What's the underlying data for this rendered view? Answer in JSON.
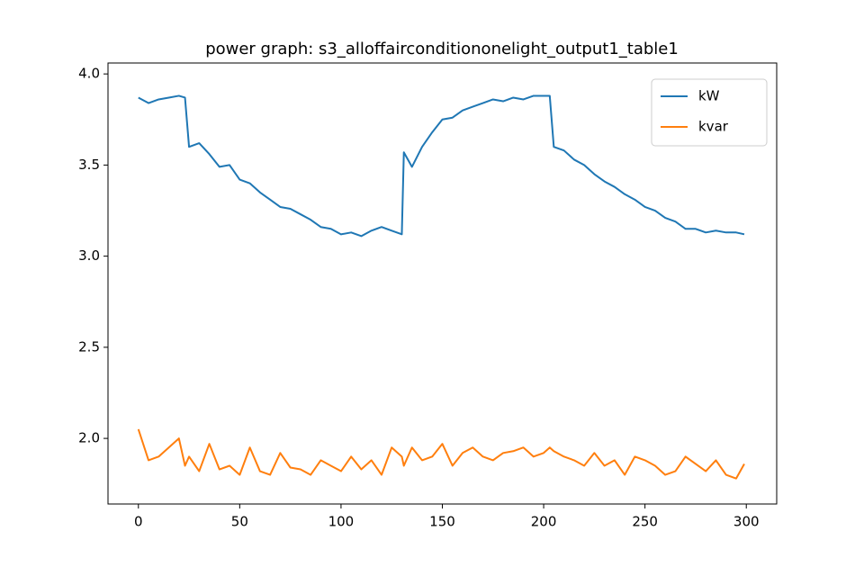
{
  "chart_data": {
    "type": "line",
    "title": "power graph: s3_alloffairconditiononelight_output1_table1",
    "x": [
      0,
      5,
      10,
      15,
      20,
      23,
      25,
      30,
      35,
      40,
      45,
      50,
      55,
      60,
      65,
      70,
      75,
      80,
      85,
      90,
      95,
      100,
      105,
      110,
      115,
      120,
      125,
      130,
      131,
      135,
      140,
      145,
      150,
      155,
      160,
      165,
      170,
      175,
      180,
      185,
      190,
      195,
      200,
      203,
      205,
      210,
      215,
      220,
      225,
      230,
      235,
      240,
      245,
      250,
      255,
      260,
      265,
      270,
      275,
      280,
      285,
      290,
      295,
      299
    ],
    "series": [
      {
        "name": "kW",
        "color": "#1f77b4",
        "values": [
          3.87,
          3.84,
          3.86,
          3.87,
          3.88,
          3.87,
          3.6,
          3.62,
          3.56,
          3.49,
          3.5,
          3.42,
          3.4,
          3.35,
          3.31,
          3.27,
          3.26,
          3.23,
          3.2,
          3.16,
          3.15,
          3.12,
          3.13,
          3.11,
          3.14,
          3.16,
          3.14,
          3.12,
          3.57,
          3.49,
          3.6,
          3.68,
          3.75,
          3.76,
          3.8,
          3.82,
          3.84,
          3.86,
          3.85,
          3.87,
          3.86,
          3.88,
          3.88,
          3.88,
          3.6,
          3.58,
          3.53,
          3.5,
          3.45,
          3.41,
          3.38,
          3.34,
          3.31,
          3.27,
          3.25,
          3.21,
          3.19,
          3.15,
          3.15,
          3.13,
          3.14,
          3.13,
          3.13,
          3.12
        ]
      },
      {
        "name": "kvar",
        "color": "#ff7f0e",
        "values": [
          2.05,
          1.88,
          1.9,
          1.95,
          2.0,
          1.85,
          1.9,
          1.82,
          1.97,
          1.83,
          1.85,
          1.8,
          1.95,
          1.82,
          1.8,
          1.92,
          1.84,
          1.83,
          1.8,
          1.88,
          1.85,
          1.82,
          1.9,
          1.83,
          1.88,
          1.8,
          1.95,
          1.9,
          1.85,
          1.95,
          1.88,
          1.9,
          1.97,
          1.85,
          1.92,
          1.95,
          1.9,
          1.88,
          1.92,
          1.93,
          1.95,
          1.9,
          1.92,
          1.95,
          1.93,
          1.9,
          1.88,
          1.85,
          1.92,
          1.85,
          1.88,
          1.8,
          1.9,
          1.88,
          1.85,
          1.8,
          1.82,
          1.9,
          1.86,
          1.82,
          1.88,
          1.8,
          1.78,
          1.86
        ]
      }
    ],
    "xlim": [
      -15,
      315
    ],
    "ylim": [
      1.64,
      4.06
    ],
    "xticks": [
      0,
      50,
      100,
      150,
      200,
      250,
      300
    ],
    "yticks": [
      {
        "value": 2.0,
        "label": "2.0"
      },
      {
        "value": 2.5,
        "label": "2.5"
      },
      {
        "value": 3.0,
        "label": "3.0"
      },
      {
        "value": 3.5,
        "label": "3.5"
      },
      {
        "value": 4.0,
        "label": "4.0"
      }
    ],
    "grid": false,
    "legend": "upper right"
  }
}
